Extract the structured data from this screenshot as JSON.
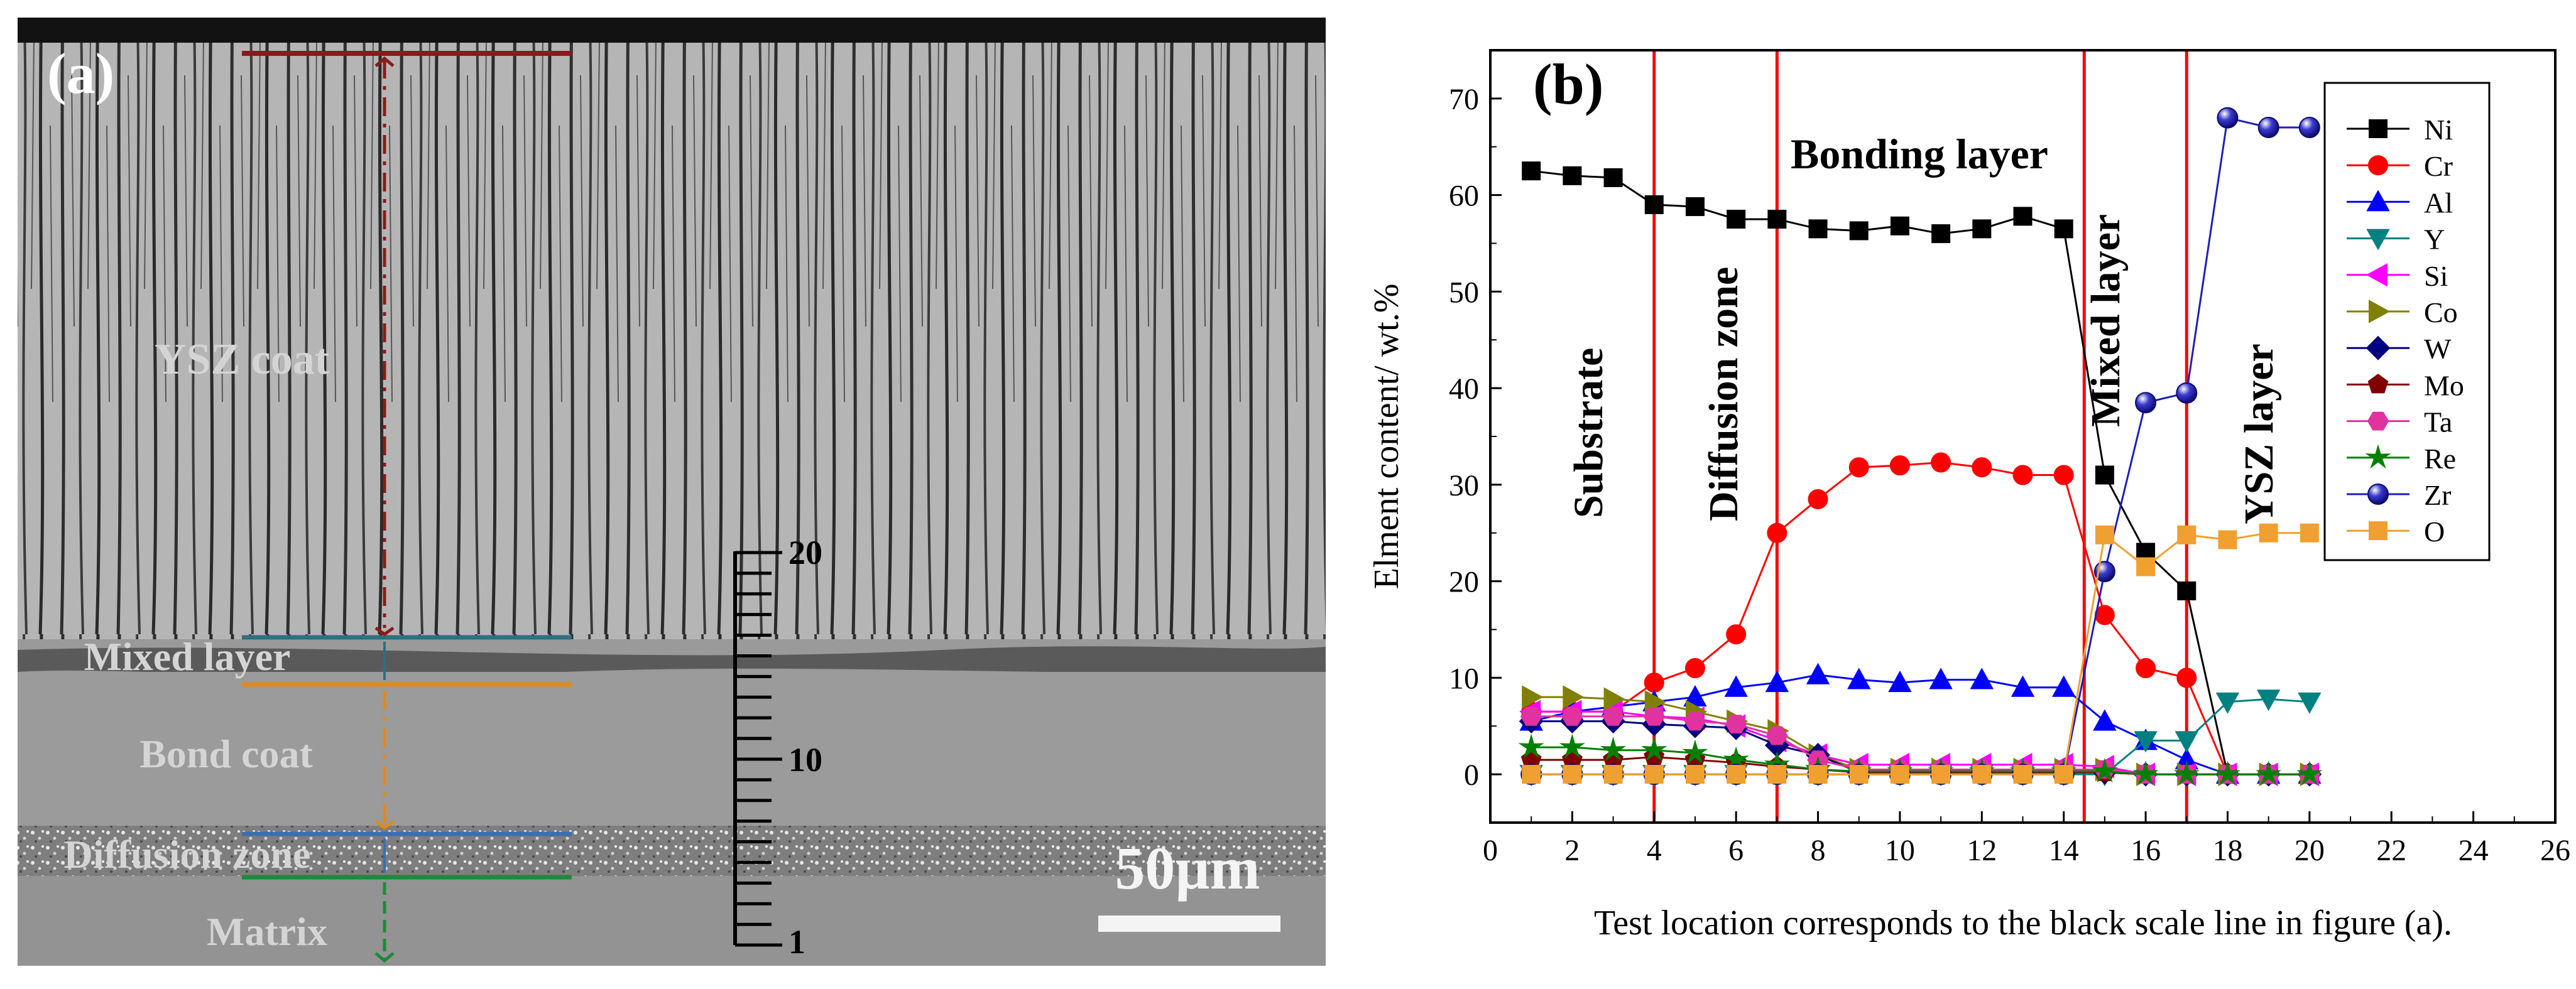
{
  "panel_a": {
    "label": "(a)",
    "regions": {
      "ysz": "YSZ coat",
      "mixed": "Mixed layer",
      "bond": "Bond coat",
      "diffusion": "Diffusion zone",
      "matrix": "Matrix"
    },
    "scale_bar_label": "50µm",
    "ruler_ticks": {
      "top": "20",
      "middle": "10",
      "bottom": "1"
    },
    "colors": {
      "ysz_line": "#8b1a1a",
      "mixed_line": "#2f6f7f",
      "bond_line": "#e08a1e",
      "diffusion_line": "#3a6fb0",
      "matrix_line": "#1e8a3a"
    }
  },
  "panel_b": {
    "label": "(b)",
    "layer_labels": {
      "substrate": "Substrate",
      "diffusion": "Diffusion zone",
      "bonding": "Bonding layer",
      "mixed": "Mixed layer",
      "ysz": "YSZ layer"
    },
    "boundary_color": "#ff0000"
  },
  "chart_data": {
    "type": "line",
    "title": "",
    "xlabel": "Test location corresponds to the black scale line in figure (a).",
    "ylabel": "Elment content/ wt.%",
    "xlim": [
      0,
      26
    ],
    "ylim": [
      -5,
      75
    ],
    "xticks": [
      "0",
      "2",
      "4",
      "6",
      "8",
      "10",
      "12",
      "14",
      "16",
      "18",
      "20",
      "22",
      "24",
      "26"
    ],
    "yticks": [
      "0",
      "10",
      "20",
      "30",
      "40",
      "50",
      "60",
      "70"
    ],
    "boundaries_x": [
      4,
      7,
      14.5,
      17
    ],
    "legend_position": "top-right",
    "x": [
      1,
      2,
      3,
      4,
      5,
      6,
      7,
      8,
      9,
      10,
      11,
      12,
      13,
      14,
      15,
      16,
      17,
      18,
      19,
      20
    ],
    "series": [
      {
        "name": "Ni",
        "marker": "square",
        "color": "#000000",
        "values": [
          62.5,
          62,
          61.8,
          59,
          58.8,
          57.5,
          57.5,
          56.5,
          56.3,
          56.8,
          56,
          56.5,
          57.8,
          56.5,
          31,
          23,
          19,
          0,
          0,
          0
        ]
      },
      {
        "name": "Cr",
        "marker": "circle",
        "color": "#ff0000",
        "values": [
          6.5,
          6.5,
          6.5,
          9.5,
          11,
          14.5,
          25,
          28.5,
          31.8,
          32,
          32.3,
          31.8,
          31,
          31,
          16.5,
          11,
          10,
          0,
          0,
          0
        ]
      },
      {
        "name": "Al",
        "marker": "triangle-up",
        "color": "#0000ff",
        "values": [
          5.5,
          6.5,
          7,
          7.5,
          8,
          9,
          9.5,
          10.3,
          9.8,
          9.5,
          9.8,
          9.8,
          9,
          9,
          5.5,
          3.5,
          1.5,
          0,
          0,
          0
        ]
      },
      {
        "name": "Y",
        "marker": "triangle-down",
        "color": "#008080",
        "values": [
          0,
          0,
          0,
          0,
          0,
          0,
          0,
          0,
          0,
          0,
          0,
          0,
          0,
          0,
          0,
          3.5,
          3.5,
          7.5,
          7.8,
          7.5
        ]
      },
      {
        "name": "Si",
        "marker": "triangle-left",
        "color": "#ff00ff",
        "values": [
          6.5,
          6.5,
          6.5,
          6,
          5.8,
          5,
          3.5,
          2,
          1,
          1,
          1,
          1,
          1,
          1,
          0.8,
          0,
          0,
          0,
          0,
          0
        ]
      },
      {
        "name": "Co",
        "marker": "triangle-right",
        "color": "#808000",
        "values": [
          8,
          8,
          7.8,
          7.5,
          6.5,
          5.5,
          4.5,
          2,
          0.5,
          0.5,
          0.5,
          0.5,
          0.5,
          0.5,
          0.5,
          0,
          0,
          0,
          0,
          0
        ]
      },
      {
        "name": "W",
        "marker": "diamond",
        "color": "#000080",
        "values": [
          5.5,
          5.5,
          5.5,
          5.2,
          5,
          4.8,
          3,
          2,
          0.2,
          0.2,
          0.2,
          0.2,
          0.2,
          0.2,
          0.2,
          0,
          0,
          0,
          0,
          0
        ]
      },
      {
        "name": "Mo",
        "marker": "pentagon",
        "color": "#800000",
        "values": [
          1.5,
          1.5,
          1.5,
          1.8,
          1.5,
          1.2,
          0.8,
          0.5,
          0.2,
          0.2,
          0.2,
          0.2,
          0.2,
          0.2,
          0.2,
          0,
          0,
          0,
          0,
          0
        ]
      },
      {
        "name": "Ta",
        "marker": "hexagon",
        "color": "#e0339f",
        "values": [
          6,
          6,
          6,
          6,
          5.5,
          5.2,
          4,
          1.5,
          0.5,
          0.5,
          0.5,
          0.5,
          0.5,
          0.5,
          0.5,
          0,
          0,
          0,
          0,
          0
        ]
      },
      {
        "name": "Re",
        "marker": "star",
        "color": "#008000",
        "values": [
          2.8,
          2.8,
          2.5,
          2.5,
          2.2,
          1.5,
          1,
          0.5,
          0.3,
          0.3,
          0.3,
          0.3,
          0.3,
          0.3,
          0.3,
          0,
          0,
          0,
          0,
          0
        ]
      },
      {
        "name": "Zr",
        "marker": "sphere",
        "color": "#1f1fb8",
        "values": [
          0,
          0,
          0,
          0,
          0,
          0,
          0,
          0,
          0,
          0,
          0,
          0,
          0,
          0,
          21,
          38.5,
          39.5,
          68,
          67,
          67
        ]
      },
      {
        "name": "O",
        "marker": "square",
        "color": "#f0a030",
        "values": [
          0,
          0,
          0,
          0,
          0,
          0,
          0,
          0,
          0,
          0,
          0,
          0,
          0,
          0,
          24.8,
          21.5,
          24.8,
          24.3,
          25,
          25
        ]
      }
    ]
  }
}
